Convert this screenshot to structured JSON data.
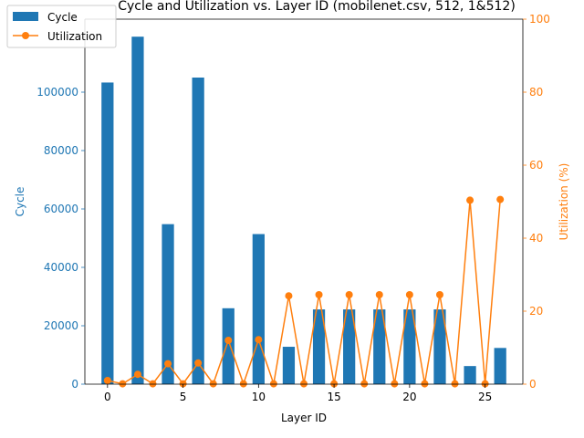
{
  "chart_data": {
    "type": "bar",
    "title": "Cycle and Utilization vs. Layer ID (mobilenet.csv, 512, 1&512)",
    "xlabel": "Layer ID",
    "ylabel_left": "Cycle",
    "ylabel_right": "Utilization (%)",
    "xlim": [
      -1.5,
      27.5
    ],
    "ylim_left": [
      0,
      125000
    ],
    "ylim_right": [
      0,
      100
    ],
    "xticks": [
      0,
      5,
      10,
      15,
      20,
      25
    ],
    "yticks_left": [
      0,
      20000,
      40000,
      60000,
      80000,
      100000
    ],
    "yticks_right": [
      0,
      20,
      40,
      60,
      80,
      100
    ],
    "legend": {
      "position": "top-left",
      "entries": [
        "Cycle",
        "Utilization"
      ]
    },
    "colors": {
      "cycle": "#1f77b4",
      "utilization": "#ff7f0e"
    },
    "series": [
      {
        "name": "Cycle",
        "kind": "bar",
        "x": [
          0,
          2,
          4,
          6,
          8,
          10,
          12,
          14,
          16,
          18,
          20,
          22,
          24,
          26
        ],
        "values": [
          103300,
          119000,
          54800,
          105000,
          26000,
          51400,
          12800,
          25600,
          25600,
          25600,
          25600,
          25600,
          6200,
          12400
        ]
      },
      {
        "name": "Utilization",
        "kind": "line",
        "x": [
          0,
          1,
          2,
          3,
          4,
          5,
          6,
          7,
          8,
          9,
          10,
          11,
          12,
          13,
          14,
          15,
          16,
          17,
          18,
          19,
          20,
          21,
          22,
          23,
          24,
          25,
          26
        ],
        "values": [
          1.0,
          0.1,
          2.7,
          0.1,
          5.6,
          0.1,
          5.8,
          0.1,
          12.0,
          0.1,
          12.2,
          0.1,
          24.2,
          0.1,
          24.5,
          0.1,
          24.5,
          0.1,
          24.5,
          0.1,
          24.5,
          0.1,
          24.5,
          0.1,
          50.4,
          0.1,
          50.6
        ]
      }
    ]
  }
}
